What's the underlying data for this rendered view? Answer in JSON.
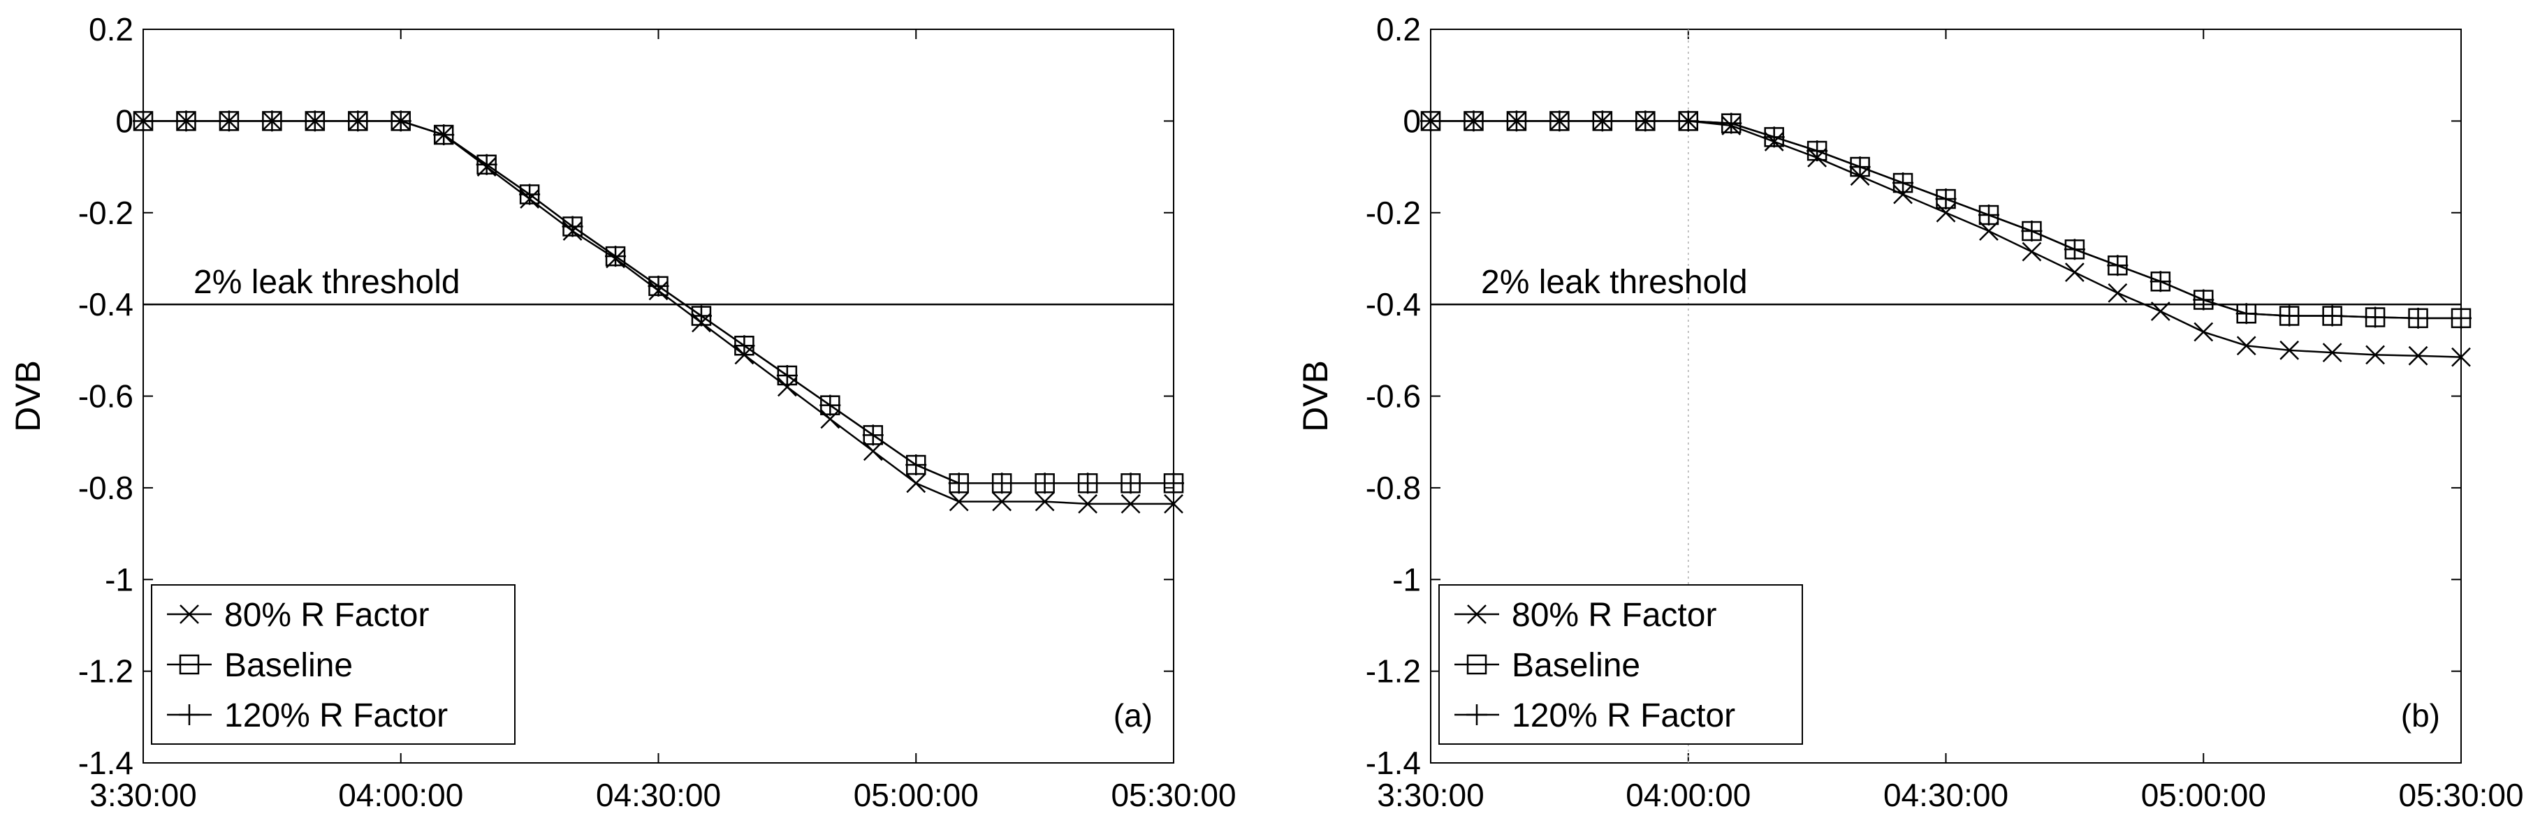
{
  "chart_data": [
    {
      "type": "line",
      "panel_label": "(a)",
      "ylabel": "DVB",
      "xlabel": "",
      "x_tick_labels": [
        "3:30:00",
        "04:00:00",
        "04:30:00",
        "05:00:00",
        "05:30:00"
      ],
      "y_tick_labels": [
        "0.2",
        "0",
        "-0.2",
        "-0.4",
        "-0.6",
        "-0.8",
        "-1",
        "-1.2",
        "-1.4"
      ],
      "xlim": [
        "3:30:00",
        "05:30:00"
      ],
      "ylim": [
        -1.4,
        0.2
      ],
      "x": [
        "3:30:00",
        "3:35:00",
        "3:40:00",
        "3:45:00",
        "3:50:00",
        "3:55:00",
        "04:00:00",
        "04:05:00",
        "04:10:00",
        "04:15:00",
        "04:20:00",
        "04:25:00",
        "04:30:00",
        "04:35:00",
        "04:40:00",
        "04:45:00",
        "04:50:00",
        "04:55:00",
        "05:00:00",
        "05:05:00",
        "05:10:00",
        "05:15:00",
        "05:20:00",
        "05:25:00",
        "05:30:00"
      ],
      "threshold": {
        "value": -0.4,
        "label": "2% leak threshold"
      },
      "grid": false,
      "legend_position": "bottom-left",
      "series": [
        {
          "name": "80%    R Factor",
          "marker": "x",
          "values": [
            0,
            0,
            0,
            0,
            0,
            0,
            0,
            -0.03,
            -0.1,
            -0.17,
            -0.24,
            -0.3,
            -0.37,
            -0.44,
            -0.51,
            -0.58,
            -0.65,
            -0.72,
            -0.79,
            -0.83,
            -0.83,
            -0.83,
            -0.835,
            -0.835,
            -0.835
          ]
        },
        {
          "name": "Baseline",
          "marker": "square",
          "values": [
            0,
            0,
            0,
            0,
            0,
            0,
            0,
            -0.03,
            -0.095,
            -0.16,
            -0.23,
            -0.295,
            -0.36,
            -0.425,
            -0.49,
            -0.555,
            -0.62,
            -0.685,
            -0.75,
            -0.79,
            -0.79,
            -0.79,
            -0.79,
            -0.79,
            -0.79
          ]
        },
        {
          "name": "120%  R Factor",
          "marker": "plus",
          "values": [
            0,
            0,
            0,
            0,
            0,
            0,
            0,
            -0.03,
            -0.095,
            -0.16,
            -0.23,
            -0.295,
            -0.36,
            -0.425,
            -0.49,
            -0.555,
            -0.62,
            -0.685,
            -0.75,
            -0.79,
            -0.79,
            -0.79,
            -0.79,
            -0.79,
            -0.79
          ]
        }
      ]
    },
    {
      "type": "line",
      "panel_label": "(b)",
      "ylabel": "DVB",
      "xlabel": "",
      "x_tick_labels": [
        "3:30:00",
        "04:00:00",
        "04:30:00",
        "05:00:00",
        "05:30:00"
      ],
      "y_tick_labels": [
        "0.2",
        "0",
        "-0.2",
        "-0.4",
        "-0.6",
        "-0.8",
        "-1",
        "-1.2",
        "-1.4"
      ],
      "xlim": [
        "3:30:00",
        "05:30:00"
      ],
      "ylim": [
        -1.4,
        0.2
      ],
      "x": [
        "3:30:00",
        "3:35:00",
        "3:40:00",
        "3:45:00",
        "3:50:00",
        "3:55:00",
        "04:00:00",
        "04:05:00",
        "04:10:00",
        "04:15:00",
        "04:20:00",
        "04:25:00",
        "04:30:00",
        "04:35:00",
        "04:40:00",
        "04:45:00",
        "04:50:00",
        "04:55:00",
        "05:00:00",
        "05:05:00",
        "05:10:00",
        "05:15:00",
        "05:20:00",
        "05:25:00",
        "05:30:00"
      ],
      "threshold": {
        "value": -0.4,
        "label": "2% leak threshold"
      },
      "vertical_reference": "04:00:00",
      "grid": false,
      "legend_position": "bottom-left",
      "series": [
        {
          "name": "80%    R Factor",
          "marker": "x",
          "values": [
            0,
            0,
            0,
            0,
            0,
            0,
            0,
            -0.01,
            -0.045,
            -0.08,
            -0.12,
            -0.16,
            -0.2,
            -0.24,
            -0.285,
            -0.33,
            -0.375,
            -0.415,
            -0.46,
            -0.49,
            -0.5,
            -0.505,
            -0.51,
            -0.512,
            -0.515
          ]
        },
        {
          "name": "Baseline",
          "marker": "square",
          "values": [
            0,
            0,
            0,
            0,
            0,
            0,
            0,
            -0.005,
            -0.035,
            -0.065,
            -0.1,
            -0.135,
            -0.17,
            -0.205,
            -0.24,
            -0.28,
            -0.315,
            -0.35,
            -0.39,
            -0.42,
            -0.425,
            -0.425,
            -0.428,
            -0.43,
            -0.43
          ]
        },
        {
          "name": "120%  R Factor",
          "marker": "plus",
          "values": [
            0,
            0,
            0,
            0,
            0,
            0,
            0,
            -0.005,
            -0.035,
            -0.065,
            -0.1,
            -0.135,
            -0.17,
            -0.205,
            -0.24,
            -0.28,
            -0.315,
            -0.35,
            -0.39,
            -0.42,
            -0.425,
            -0.425,
            -0.428,
            -0.43,
            -0.43
          ]
        }
      ]
    }
  ]
}
